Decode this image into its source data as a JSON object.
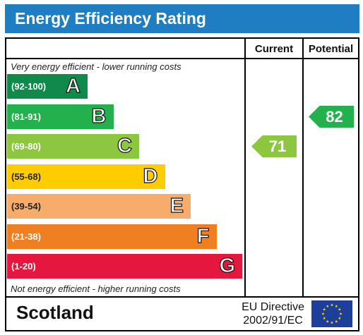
{
  "title": "Energy Efficiency Rating",
  "columns": {
    "current": "Current",
    "potential": "Potential"
  },
  "top_caption": "Very energy efficient - lower running costs",
  "bottom_caption": "Not energy efficient - higher running costs",
  "footer": {
    "country": "Scotland",
    "directive_line1": "EU Directive",
    "directive_line2": "2002/91/EC"
  },
  "chart_data": {
    "type": "bar",
    "title": "Energy Efficiency Rating",
    "bands": [
      {
        "letter": "A",
        "range": "(92-100)",
        "color": "#0f8a4a"
      },
      {
        "letter": "B",
        "range": "(81-91)",
        "color": "#22b14c"
      },
      {
        "letter": "C",
        "range": "(69-80)",
        "color": "#8dc63f"
      },
      {
        "letter": "D",
        "range": "(55-68)",
        "color": "#ffcc00"
      },
      {
        "letter": "E",
        "range": "(39-54)",
        "color": "#f7ac6b"
      },
      {
        "letter": "F",
        "range": "(21-38)",
        "color": "#f07f22"
      },
      {
        "letter": "G",
        "range": "(1-20)",
        "color": "#e5173f"
      }
    ],
    "current": {
      "value": 71,
      "band": "C",
      "color": "#8dc63f"
    },
    "potential": {
      "value": 82,
      "band": "B",
      "color": "#22b14c"
    }
  }
}
